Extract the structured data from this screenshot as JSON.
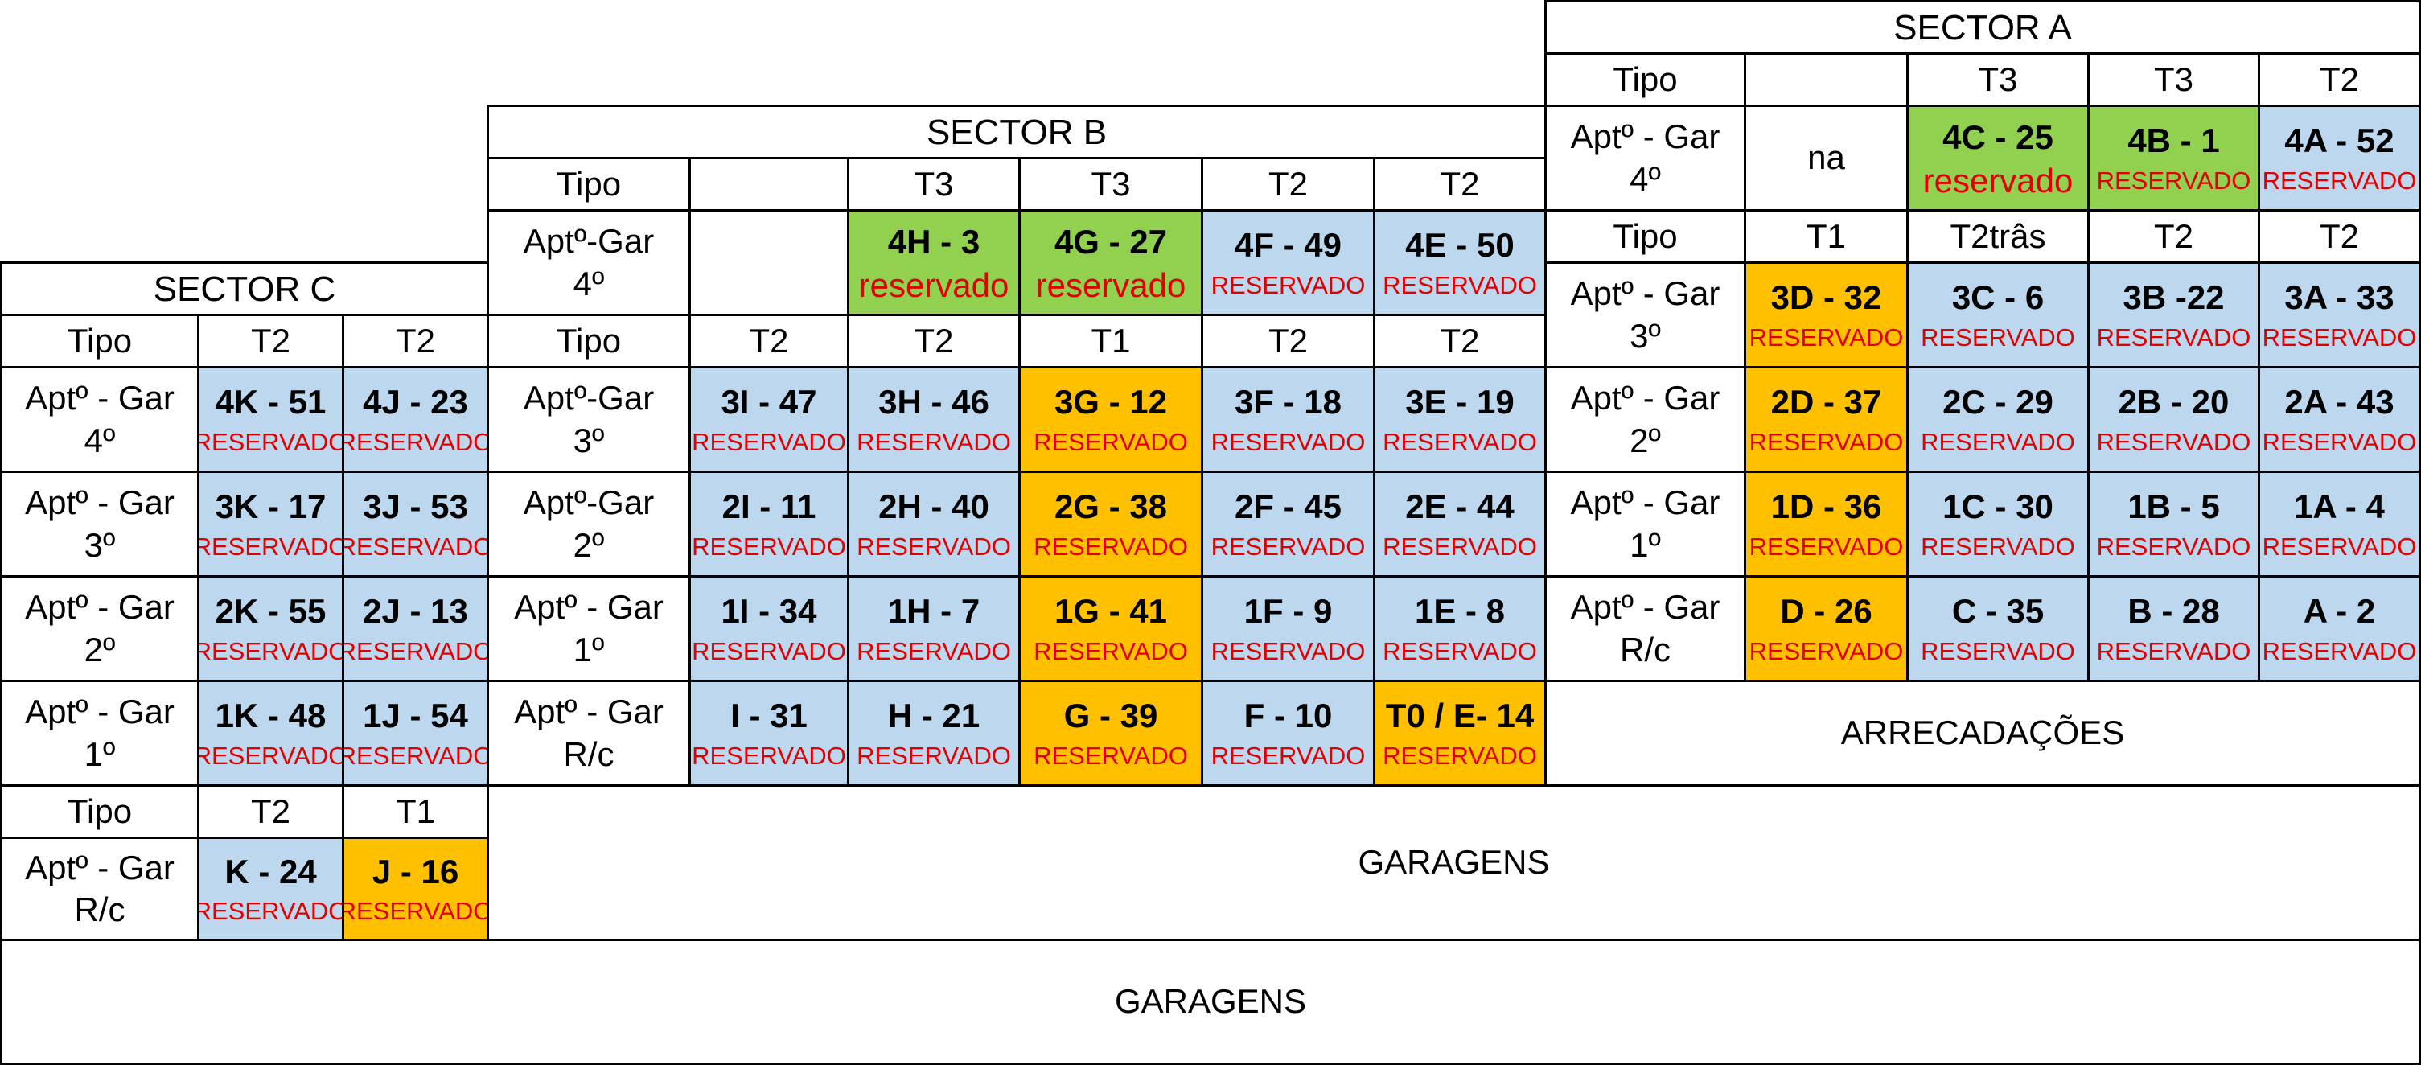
{
  "sector_a": {
    "title": "SECTOR A",
    "tipo_label": "Tipo",
    "tipo_blank": "",
    "types_top": [
      "T3",
      "T3",
      "T2"
    ],
    "f4_label": [
      "Aptº - Gar",
      "4º"
    ],
    "f4_na": "na",
    "f4_units": [
      {
        "code": "4C - 25",
        "status": "reservado"
      },
      {
        "code": "4B - 1",
        "status": "RESERVADO"
      },
      {
        "code": "4A - 52",
        "status": "RESERVADO"
      }
    ],
    "types_mid": [
      "T1",
      "T2trâs",
      "T2",
      "T2"
    ],
    "floors": [
      {
        "label": [
          "Aptº - Gar",
          "3º"
        ],
        "units": [
          {
            "code": "3D - 32",
            "status": "RESERVADO"
          },
          {
            "code": "3C - 6",
            "status": "RESERVADO"
          },
          {
            "code": "3B -22",
            "status": "RESERVADO"
          },
          {
            "code": "3A - 33",
            "status": "RESERVADO"
          }
        ]
      },
      {
        "label": [
          "Aptº - Gar",
          "2º"
        ],
        "units": [
          {
            "code": "2D - 37",
            "status": "RESERVADO"
          },
          {
            "code": "2C - 29",
            "status": "RESERVADO"
          },
          {
            "code": "2B - 20",
            "status": "RESERVADO"
          },
          {
            "code": "2A - 43",
            "status": "RESERVADO"
          }
        ]
      },
      {
        "label": [
          "Aptº - Gar",
          "1º"
        ],
        "units": [
          {
            "code": "1D - 36",
            "status": "RESERVADO"
          },
          {
            "code": "1C - 30",
            "status": "RESERVADO"
          },
          {
            "code": "1B - 5",
            "status": "RESERVADO"
          },
          {
            "code": "1A - 4",
            "status": "RESERVADO"
          }
        ]
      },
      {
        "label": [
          "Aptº - Gar",
          "R/c"
        ],
        "units": [
          {
            "code": "D - 26",
            "status": "RESERVADO"
          },
          {
            "code": "C - 35",
            "status": "RESERVADO"
          },
          {
            "code": "B - 28",
            "status": "RESERVADO"
          },
          {
            "code": "A - 2",
            "status": "RESERVADO"
          }
        ]
      }
    ],
    "storage": "ARRECADAÇÕES"
  },
  "sector_b": {
    "title": "SECTOR B",
    "tipo_label": "Tipo",
    "tipo_blank": "",
    "types_top": [
      "T3",
      "T3",
      "T2",
      "T2"
    ],
    "f4_label": [
      "Aptº-Gar",
      "4º"
    ],
    "f4_units": [
      {
        "code": "4H - 3",
        "status": "reservado"
      },
      {
        "code": "4G - 27",
        "status": "reservado"
      },
      {
        "code": "4F - 49",
        "status": "RESERVADO"
      },
      {
        "code": "4E - 50",
        "status": "RESERVADO"
      }
    ],
    "types_mid": [
      "T2",
      "T2",
      "T1",
      "T2",
      "T2"
    ],
    "floors": [
      {
        "label": [
          "Aptº-Gar",
          "3º"
        ],
        "units": [
          {
            "code": "3I - 47",
            "status": "RESERVADO"
          },
          {
            "code": "3H - 46",
            "status": "RESERVADO"
          },
          {
            "code": "3G - 12",
            "status": "RESERVADO"
          },
          {
            "code": "3F - 18",
            "status": "RESERVADO"
          },
          {
            "code": "3E - 19",
            "status": "RESERVADO"
          }
        ]
      },
      {
        "label": [
          "Aptº-Gar",
          "2º"
        ],
        "units": [
          {
            "code": "2I - 11",
            "status": "RESERVADO"
          },
          {
            "code": "2H - 40",
            "status": "RESERVADO"
          },
          {
            "code": "2G - 38",
            "status": "RESERVADO"
          },
          {
            "code": "2F - 45",
            "status": "RESERVADO"
          },
          {
            "code": "2E - 44",
            "status": "RESERVADO"
          }
        ]
      },
      {
        "label": [
          "Aptº - Gar",
          "1º"
        ],
        "units": [
          {
            "code": "1I - 34",
            "status": "RESERVADO"
          },
          {
            "code": "1H - 7",
            "status": "RESERVADO"
          },
          {
            "code": "1G - 41",
            "status": "RESERVADO"
          },
          {
            "code": "1F - 9",
            "status": "RESERVADO"
          },
          {
            "code": "1E - 8",
            "status": "RESERVADO"
          }
        ]
      },
      {
        "label": [
          "Aptº - Gar",
          "R/c"
        ],
        "units": [
          {
            "code": "I - 31",
            "status": "RESERVADO"
          },
          {
            "code": "H - 21",
            "status": "RESERVADO"
          },
          {
            "code": "G - 39",
            "status": "RESERVADO"
          },
          {
            "code": "F - 10",
            "status": "RESERVADO"
          },
          {
            "code": "T0 / E- 14",
            "status": "RESERVADO"
          }
        ]
      }
    ]
  },
  "sector_c": {
    "title": "SECTOR C",
    "tipo_label": "Tipo",
    "types": [
      "T2",
      "T2"
    ],
    "floors": [
      {
        "label": [
          "Aptº - Gar",
          "4º"
        ],
        "units": [
          {
            "code": "4K - 51",
            "status": "RESERVADO"
          },
          {
            "code": "4J - 23",
            "status": "RESERVADO"
          }
        ]
      },
      {
        "label": [
          "Aptº - Gar",
          "3º"
        ],
        "units": [
          {
            "code": "3K - 17",
            "status": "RESERVADO"
          },
          {
            "code": "3J - 53",
            "status": "RESERVADO"
          }
        ]
      },
      {
        "label": [
          "Aptº - Gar",
          "2º"
        ],
        "units": [
          {
            "code": "2K - 55",
            "status": "RESERVADO"
          },
          {
            "code": "2J  - 13",
            "status": "RESERVADO"
          }
        ]
      },
      {
        "label": [
          "Aptº - Gar",
          "1º"
        ],
        "units": [
          {
            "code": "1K - 48",
            "status": "RESERVADO"
          },
          {
            "code": "1J - 54",
            "status": "RESERVADO"
          }
        ]
      }
    ],
    "rc_tipo_label": "Tipo",
    "rc_types": [
      "T2",
      "T1"
    ],
    "rc_label": [
      "Aptº - Gar",
      "R/c"
    ],
    "rc_units": [
      {
        "code": "K - 24",
        "status": "RESERVADO"
      },
      {
        "code": "J - 16",
        "status": "RESERVADO"
      }
    ]
  },
  "garages_upper": "GARAGENS",
  "garages_lower": "GARAGENS",
  "colors": {
    "blue": "#bdd7ee",
    "orange": "#ffc000",
    "green": "#92d050",
    "reserved_text": "#e00000",
    "border": "#000000"
  }
}
